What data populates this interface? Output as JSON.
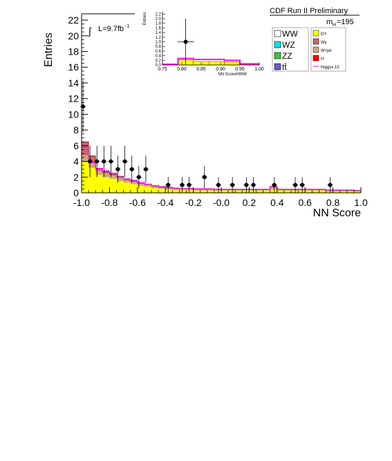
{
  "chart_data": {
    "type": "histogram",
    "main": {
      "xlabel": "NN Score",
      "ylabel": "Entries",
      "xlim": [
        -1.0,
        1.0
      ],
      "ylim": [
        0,
        22.8
      ],
      "x_ticks": [
        "-1.0",
        "-0.8",
        "-0.6",
        "-0.4",
        "-0.2",
        "-0.0",
        "0.2",
        "0.4",
        "0.6",
        "0.8",
        "1.0"
      ],
      "y_ticks": [
        "0",
        "2",
        "4",
        "6",
        "8",
        "10",
        "12",
        "14",
        "16",
        "18",
        "20",
        "22"
      ],
      "bin_edges": [
        -1.0,
        -0.95,
        -0.9,
        -0.85,
        -0.8,
        -0.75,
        -0.7,
        -0.65,
        -0.6,
        -0.55,
        -0.5,
        -0.45,
        -0.4,
        -0.35,
        -0.3,
        -0.25,
        -0.2,
        -0.15,
        -0.1,
        -0.05,
        0.0,
        0.05,
        0.1,
        0.15,
        0.2,
        0.25,
        0.3,
        0.35,
        0.4,
        0.45,
        0.5,
        0.55,
        0.6,
        0.65,
        0.7,
        0.75,
        0.8,
        0.85,
        0.9,
        0.95,
        1.0
      ],
      "stack": [
        {
          "name": "DY",
          "color": "#ffff00",
          "values": [
            4.0,
            3.2,
            2.3,
            2.0,
            1.8,
            1.5,
            1.3,
            1.1,
            0.9,
            0.8,
            0.6,
            0.5,
            0.45,
            0.4,
            0.35,
            0.35,
            0.3,
            0.3,
            0.3,
            0.3,
            0.3,
            0.3,
            0.3,
            0.3,
            0.3,
            0.3,
            0.3,
            0.4,
            0.3,
            0.3,
            0.3,
            0.3,
            0.3,
            0.3,
            0.3,
            0.2,
            0.2,
            0.2,
            0.2,
            0.15
          ]
        },
        {
          "name": "W+jet",
          "color": "#d2a679",
          "values": [
            0.8,
            0.6,
            0.5,
            0.5,
            0.4,
            0.4,
            0.3,
            0.3,
            0.25,
            0.2,
            0.2,
            0.15,
            0.15,
            0.15,
            0.15,
            0.15,
            0.15,
            0.15,
            0.15,
            0.1,
            0.1,
            0.1,
            0.1,
            0.1,
            0.1,
            0.1,
            0.1,
            0.3,
            0.1,
            0.1,
            0.1,
            0.1,
            0.1,
            0.1,
            0.1,
            0.1,
            0.1,
            0.1,
            0.1,
            0.1
          ]
        },
        {
          "name": "Wγ",
          "color": "#cc6666",
          "values": [
            1.7,
            0.9,
            0.3,
            0.2,
            0.2,
            0.2,
            0.15,
            0.15,
            0.1,
            0.1,
            0.1,
            0.1,
            0.1,
            0.05,
            0.05,
            0.05,
            0.05,
            0.05,
            0.05,
            0.05,
            0.05,
            0.05,
            0.05,
            0.05,
            0.05,
            0.05,
            0.05,
            0.1,
            0.05,
            0.05,
            0.05,
            0.05,
            0.05,
            0.05,
            0.05,
            0.05,
            0.05,
            0.05,
            0.05,
            0.05
          ]
        }
      ],
      "signal": {
        "name": "Higgsx 15",
        "color": "#ff00ff",
        "values": [
          5.8,
          3.9,
          3.1,
          2.8,
          2.5,
          2.1,
          1.8,
          1.6,
          1.3,
          1.1,
          0.9,
          0.8,
          0.7,
          0.6,
          0.55,
          0.55,
          0.5,
          0.5,
          0.5,
          0.45,
          0.45,
          0.45,
          0.45,
          0.45,
          0.45,
          0.45,
          0.45,
          0.8,
          0.45,
          0.45,
          0.45,
          0.45,
          0.45,
          0.45,
          0.45,
          0.35,
          0.35,
          0.35,
          0.35,
          0.3
        ]
      },
      "data_points": [
        {
          "x": -0.99,
          "y": 11
        },
        {
          "x": -0.94,
          "y": 4
        },
        {
          "x": -0.89,
          "y": 4
        },
        {
          "x": -0.84,
          "y": 4
        },
        {
          "x": -0.79,
          "y": 4
        },
        {
          "x": -0.74,
          "y": 3
        },
        {
          "x": -0.69,
          "y": 4
        },
        {
          "x": -0.64,
          "y": 3
        },
        {
          "x": -0.59,
          "y": 2
        },
        {
          "x": -0.54,
          "y": 3
        },
        {
          "x": -0.38,
          "y": 1
        },
        {
          "x": -0.28,
          "y": 1
        },
        {
          "x": -0.23,
          "y": 1
        },
        {
          "x": -0.12,
          "y": 2
        },
        {
          "x": -0.02,
          "y": 1
        },
        {
          "x": 0.08,
          "y": 1
        },
        {
          "x": 0.18,
          "y": 1
        },
        {
          "x": 0.23,
          "y": 1
        },
        {
          "x": 0.38,
          "y": 1
        },
        {
          "x": 0.53,
          "y": 1
        },
        {
          "x": 0.58,
          "y": 1
        },
        {
          "x": 0.78,
          "y": 1
        }
      ]
    },
    "inset": {
      "xlabel": "NN ScoreHWW",
      "ylabel": "Entries",
      "xlim": [
        0.75,
        1.0
      ],
      "ylim": [
        0,
        2.3
      ],
      "x_ticks": [
        "0.75",
        "0.80",
        "0.85",
        "0.90",
        "0.95",
        "1.00"
      ],
      "y_ticks": [
        "0.0",
        "0.2",
        "0.4",
        "0.6",
        "0.8",
        "1.0",
        "1.2",
        "1.4",
        "1.6",
        "1.8",
        "2.0",
        "2.2"
      ],
      "bin_edges": [
        0.75,
        0.79,
        0.83,
        0.87,
        0.91,
        0.95,
        1.0
      ],
      "stack_values": [
        0.02,
        0.22,
        0.15,
        0.15,
        0.13,
        0.04
      ],
      "signal_values": [
        0.03,
        0.28,
        0.24,
        0.24,
        0.2,
        0.05
      ],
      "data_point": {
        "x": 0.81,
        "y": 1.0
      }
    },
    "legend": {
      "left": [
        {
          "label": "WW",
          "color": "#ffffff"
        },
        {
          "label": "WZ",
          "color": "#00e5ee"
        },
        {
          "label": "ZZ",
          "color": "#33cc33"
        },
        {
          "label": "tt̄",
          "color": "#6a5acd"
        }
      ],
      "right": [
        {
          "label": "DY",
          "color": "#ffff00"
        },
        {
          "label": "Wγ",
          "color": "#cc6666"
        },
        {
          "label": "W+jet",
          "color": "#d2a679"
        },
        {
          "label": "H",
          "color": "#ff0000"
        },
        {
          "label": "Higgsx 15",
          "color": "#ff00ff"
        }
      ]
    }
  },
  "labels": {
    "experiment": "CDF Run II Preliminary",
    "mass_label": "m",
    "mass_sub": "H",
    "mass_value": "=195",
    "lumi": "L=9.7fb",
    "lumi_exp": "-1"
  }
}
